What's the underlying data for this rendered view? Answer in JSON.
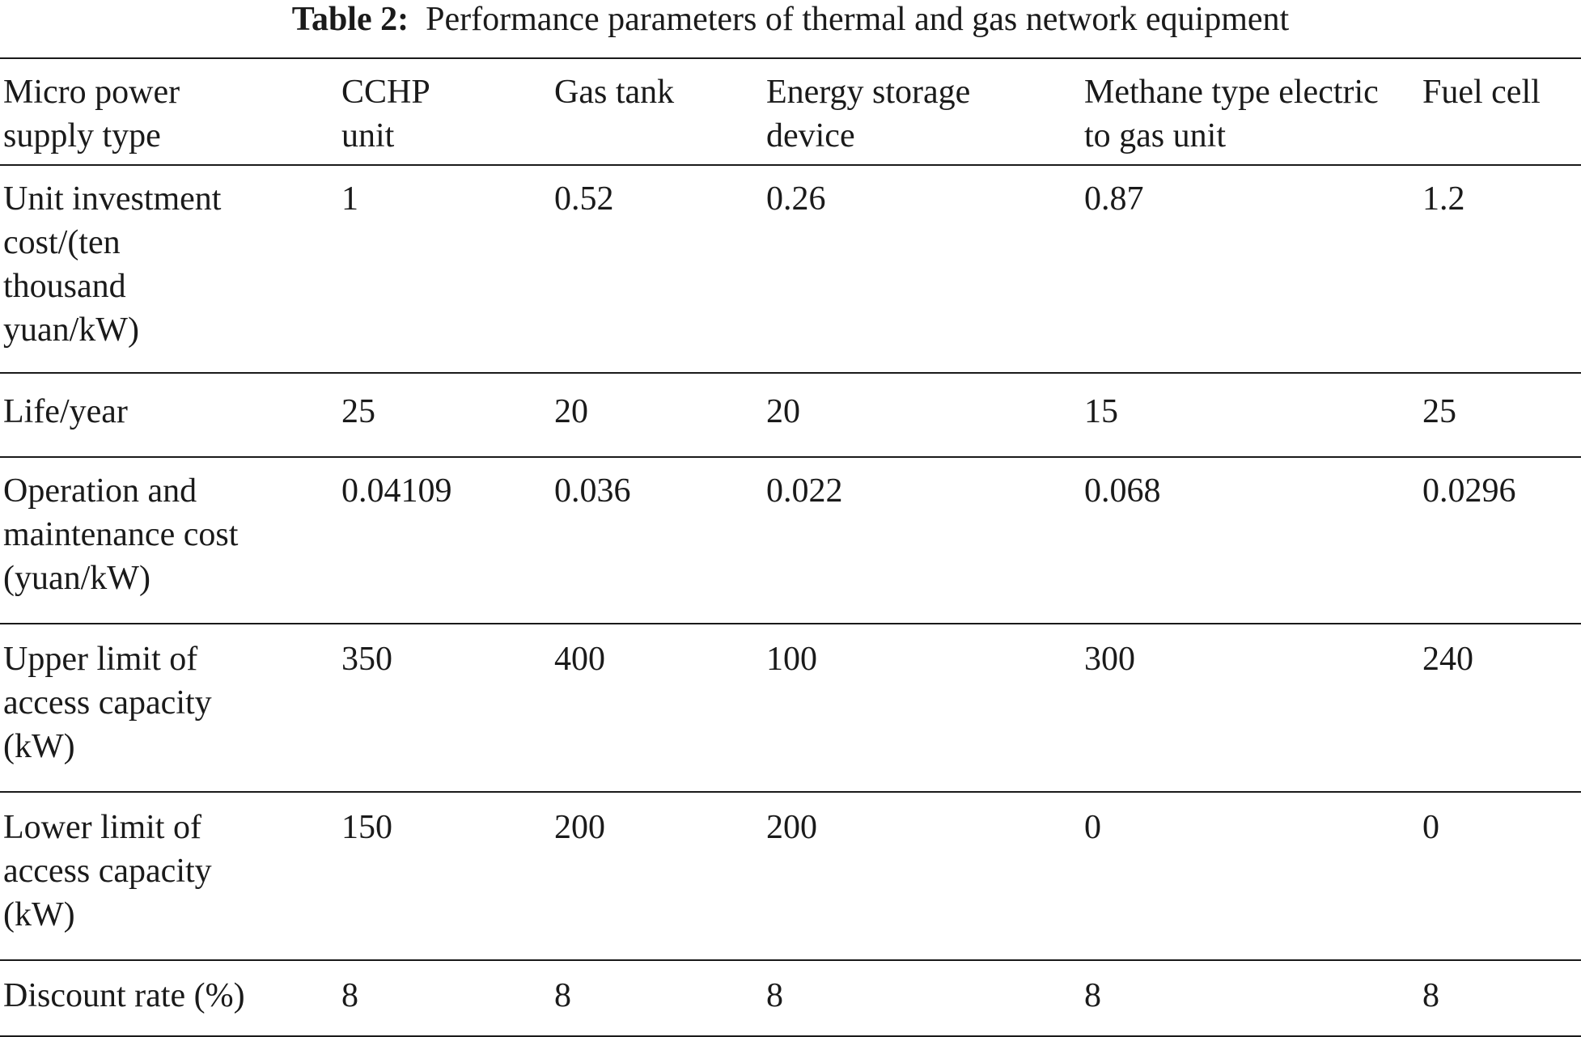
{
  "caption": {
    "label": "Table 2:",
    "text": "Performance parameters of thermal and gas network equipment"
  },
  "table": {
    "headers": [
      "Micro power supply type",
      "CCHP unit",
      "Gas tank",
      "Energy storage device",
      "Methane type electric to gas unit",
      "Fuel cell"
    ],
    "rows": [
      [
        "Unit investment cost/(ten thousand yuan/kW)",
        "1",
        "0.52",
        "0.26",
        "0.87",
        "1.2"
      ],
      [
        "Life/year",
        "25",
        "20",
        "20",
        "15",
        "25"
      ],
      [
        "Operation and maintenance cost (yuan/kW)",
        "0.04109",
        "0.036",
        "0.022",
        "0.068",
        "0.0296"
      ],
      [
        "Upper limit of access capacity (kW)",
        "350",
        "400",
        "100",
        "300",
        "240"
      ],
      [
        "Lower limit of access capacity (kW)",
        "150",
        "200",
        "200",
        "0",
        "0"
      ],
      [
        "Discount rate (%)",
        "8",
        "8",
        "8",
        "8",
        "8"
      ]
    ]
  }
}
